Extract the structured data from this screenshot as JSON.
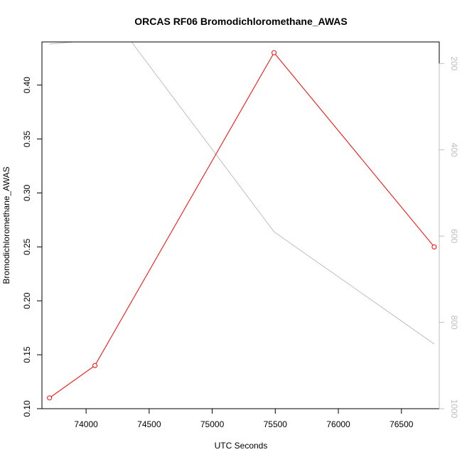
{
  "chart_data": {
    "type": "line",
    "title": "ORCAS RF06 Bromodichloromethane_AWAS",
    "xlabel": "UTC Seconds",
    "ylabel": "Bromodichloromethane_AWAS",
    "xlim": [
      73650,
      76800
    ],
    "ylim": [
      0.1,
      0.44
    ],
    "y2lim": [
      1000,
      150
    ],
    "x_ticks": [
      74000,
      74500,
      75000,
      75500,
      76000,
      76500
    ],
    "y_ticks": [
      0.1,
      0.15,
      0.2,
      0.25,
      0.3,
      0.35,
      0.4
    ],
    "y2_ticks": [
      200,
      400,
      600,
      800,
      1000
    ],
    "colors": {
      "primary": "#ff0000",
      "secondary": "#bebebe",
      "axes": "#000000"
    },
    "series": [
      {
        "x": [
          73710,
          74070,
          75490,
          76760
        ],
        "y": [
          0.11,
          0.14,
          0.43,
          0.25
        ],
        "style": "line-with-open-circles",
        "axis": "left",
        "color": "#ff0000"
      },
      {
        "x": [
          73710,
          73900,
          74360,
          75490,
          76760
        ],
        "y": [
          155,
          150,
          150,
          590,
          850
        ],
        "style": "line",
        "axis": "right",
        "color": "#bebebe"
      }
    ]
  }
}
